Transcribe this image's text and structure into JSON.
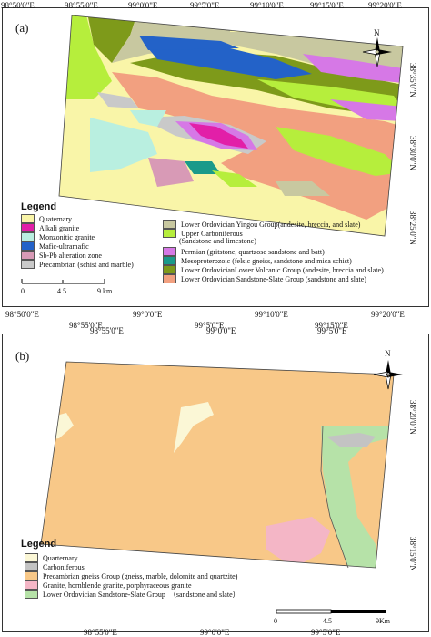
{
  "panel_a": {
    "label": "(a)",
    "top_coords": [
      "98°50'0\"E",
      "98°55'0\"E",
      "99°0'0\"E",
      "99°5'0\"E",
      "99°10'0\"E",
      "99°15'0\"E",
      "99°20'0\"E"
    ],
    "bottom_coords": [
      "98°50'0\"E",
      "98°55'0\"E",
      "99°0'0\"E",
      "99°5'0\"E",
      "99°10'0\"E",
      "99°15'0\"E",
      "99°20'0\"E"
    ],
    "right_coords": [
      "38°35'0\"N",
      "38°30'0\"N",
      "38°25'0\"N"
    ],
    "compass_label": "N",
    "legend_title": "Legend",
    "legend_left": [
      {
        "label": "Quaternary",
        "color": "#f9f5a8"
      },
      {
        "label": "Alkali granite",
        "color": "#e21fa8"
      },
      {
        "label": "Monzonitic granite",
        "color": "#b9efe0"
      },
      {
        "label": "Mafic-ultramafic",
        "color": "#2362c8"
      },
      {
        "label": "Sb-Pb alteration zone",
        "color": "#d89ab6"
      },
      {
        "label": "Precambrian (schist and marble)",
        "color": "#c9c9c9"
      }
    ],
    "legend_right": [
      {
        "label": "Lower Ordovician Yingou Group(andesite, breccia, and slate)",
        "color": "#c8c8a0"
      },
      {
        "label": "Upper Carboniferous",
        "color": "#b6ee3c"
      },
      {
        "label": "(Sandstone and limestone)",
        "color": ""
      },
      {
        "label": "Permian (gritstone, quartzose sandstone and batt)",
        "color": "#d678e6"
      },
      {
        "label": "Mesoproterozoic (felsic gneiss, sandstone and mica schist)",
        "color": "#1a9a8a"
      },
      {
        "label": "Lower OrdovicianLower Volcanic Group (andesite, breccia and slate)",
        "color": "#7e9a1a"
      },
      {
        "label": "Lower Ordovician Sandstone-Slate Group (sandstone and slate)",
        "color": "#f2a080"
      }
    ],
    "scale_ticks": [
      "0",
      "4.5",
      "9 km"
    ]
  },
  "panel_b": {
    "label": "(b)",
    "top_coords": [
      "98°55'0\"E",
      "99°0'0\"E",
      "99°5'0\"E"
    ],
    "bottom_coords": [
      "98°55'0\"E",
      "99°0'0\"E",
      "99°5'0\"E"
    ],
    "right_coords": [
      "38°20'0\"N",
      "38°15'0\"N"
    ],
    "compass_label": "N",
    "legend_title": "Legend",
    "legend": [
      {
        "label": "Quarternary",
        "color": "#fbf7d6"
      },
      {
        "label": "Carboniferous",
        "color": "#c3c3c3"
      },
      {
        "label": "Precambrian gneiss Group (gneiss, marble, dolomite and quartzite)",
        "color": "#f8c888"
      },
      {
        "label": "Granite, hornblende granite, porphyraceous granite",
        "color": "#f4b6c6"
      },
      {
        "label": "Lower Ordovician Sandstone-Slate Group  （sandstone and slate）",
        "color": "#b6e2a8"
      }
    ],
    "scale_ticks": [
      "0",
      "4.5",
      "9Km"
    ]
  }
}
